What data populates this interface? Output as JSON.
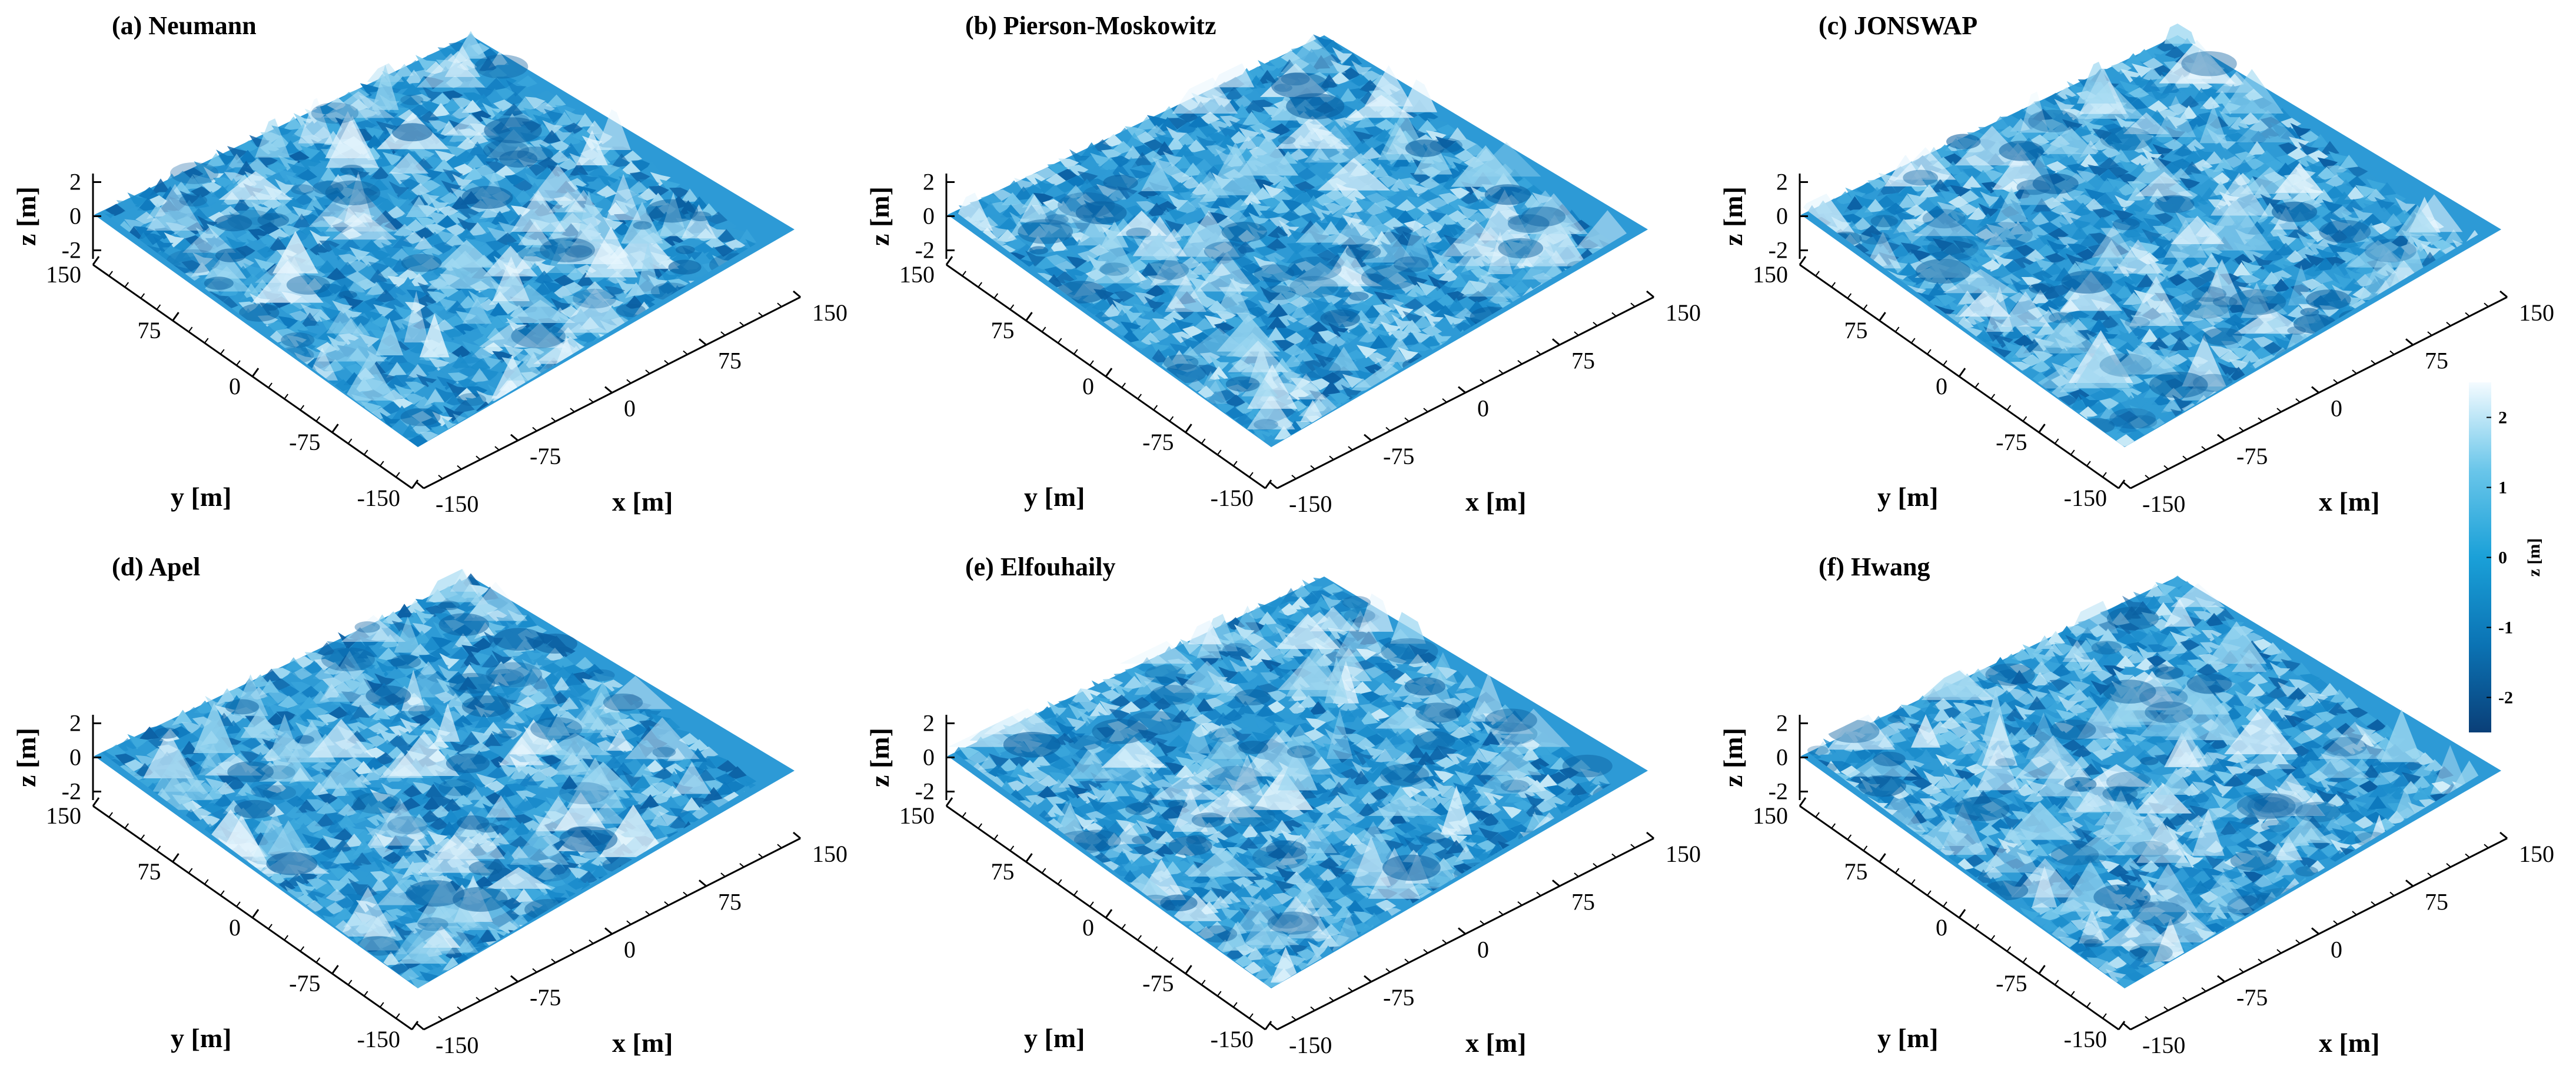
{
  "chart_data": {
    "type": "surface",
    "colorbar": {
      "label": "z [m]",
      "ticks": [
        2,
        1,
        0,
        -1,
        -2
      ],
      "range": [
        -2.5,
        2.5
      ],
      "colors": [
        "#0a3f78",
        "#0b73b4",
        "#1aa0d8",
        "#6ac6ea",
        "#f4fbff"
      ]
    },
    "axes": {
      "x_label": "x [m]",
      "y_label": "y [m]",
      "z_label": "z [m]",
      "x_ticks": [
        -150,
        -75,
        0,
        75,
        150
      ],
      "y_ticks": [
        -150,
        -75,
        0,
        75,
        150
      ],
      "z_ticks": [
        2,
        0,
        -2
      ],
      "x_range": [
        -150,
        150
      ],
      "y_range": [
        -150,
        150
      ],
      "z_range": [
        -2.5,
        2.5
      ]
    },
    "panels": [
      {
        "title": "(a) Neumann"
      },
      {
        "title": "(b) Pierson-Moskowitz"
      },
      {
        "title": "(c) JONSWAP"
      },
      {
        "title": "(d) Apel"
      },
      {
        "title": "(e) Elfouhaily"
      },
      {
        "title": "(f) Hwang"
      }
    ]
  }
}
